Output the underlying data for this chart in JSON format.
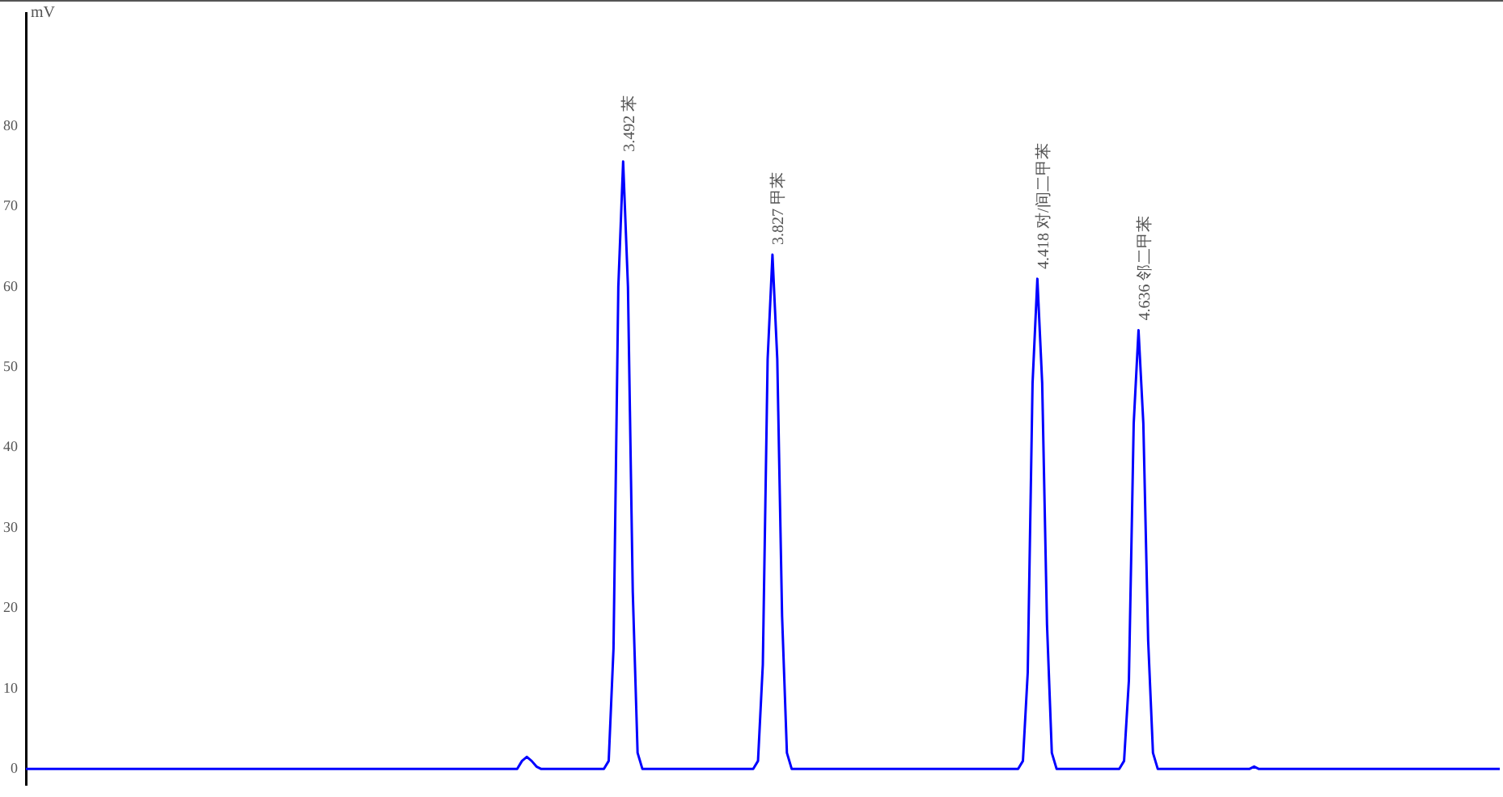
{
  "chart_data": {
    "type": "line",
    "ylabel": "mV",
    "ylim": [
      -2,
      94
    ],
    "yticks": [
      0,
      10,
      20,
      30,
      40,
      50,
      60,
      70,
      80
    ],
    "tick_labels": "y",
    "grid": false,
    "legend": false,
    "marker": "none",
    "line_style": "solid",
    "categories": [
      null,
      null,
      null,
      null,
      null,
      null,
      null,
      null,
      null,
      null,
      null,
      null,
      null,
      null,
      null,
      null,
      null,
      null,
      null,
      null,
      null,
      null,
      null,
      null,
      null,
      null,
      null,
      null,
      null,
      null,
      null,
      null,
      null,
      null,
      null,
      null,
      null,
      null,
      null,
      null,
      null,
      null,
      null,
      null,
      null,
      null,
      null,
      null,
      null,
      null,
      null,
      null,
      null,
      null,
      null,
      null,
      null,
      null,
      null,
      null,
      null,
      null,
      null,
      null,
      null,
      null,
      null,
      null,
      null,
      null,
      null,
      null,
      null,
      null,
      null,
      null,
      null,
      null,
      null,
      null,
      null,
      null,
      null,
      null,
      null,
      null,
      null,
      null,
      null,
      null,
      null,
      null,
      null,
      null,
      null,
      null,
      null,
      null,
      null,
      null,
      null,
      null,
      null,
      null,
      null,
      null,
      null,
      null,
      null,
      null,
      null,
      null,
      null,
      null,
      null,
      null,
      null,
      null,
      null,
      null,
      null,
      null,
      null,
      null,
      null,
      null,
      null,
      null,
      null,
      null,
      null,
      null,
      null,
      null,
      null,
      null,
      null,
      null,
      null,
      null,
      null,
      null,
      null,
      null,
      null,
      null,
      null,
      null,
      null,
      null,
      null,
      null,
      null,
      null,
      null,
      null,
      null,
      null,
      null,
      null,
      null,
      null,
      null,
      null,
      null,
      null,
      null,
      null,
      null,
      null,
      null,
      null,
      null,
      null,
      null,
      null,
      null,
      null,
      null,
      null,
      null,
      null,
      null,
      null,
      null,
      null,
      null,
      null,
      null,
      null,
      null,
      null,
      null,
      null,
      null,
      null,
      null,
      null,
      null,
      null,
      null,
      null,
      null,
      null,
      null,
      null,
      null,
      null,
      null,
      null,
      null,
      null,
      null,
      null,
      null,
      null,
      null,
      null,
      null,
      null,
      null,
      null,
      null,
      null,
      null,
      null,
      null,
      null,
      null,
      null,
      null,
      null,
      null,
      null,
      null,
      null,
      null,
      null,
      null,
      null,
      null,
      null,
      null,
      null,
      null,
      null,
      null,
      null,
      null,
      null,
      null,
      null,
      null,
      null,
      null,
      null,
      null,
      null,
      null,
      null,
      null,
      null,
      null,
      null,
      null,
      null,
      null,
      null,
      null,
      null,
      null,
      null,
      null,
      null,
      null,
      null,
      null,
      null,
      null,
      null,
      null,
      null,
      null,
      null,
      null,
      null,
      null,
      null,
      null,
      null,
      null,
      null,
      null,
      null,
      null,
      null,
      null,
      null,
      null,
      null,
      null,
      null,
      null,
      null,
      null,
      null,
      null
    ],
    "series": [
      {
        "color": "#0000ff",
        "values": [
          0,
          0,
          0,
          0,
          0,
          0,
          0,
          0,
          0,
          0,
          0,
          0,
          0,
          0,
          0,
          0,
          0,
          0,
          0,
          0,
          0,
          0,
          0,
          0,
          0,
          0,
          0,
          0,
          0,
          0,
          0,
          0,
          0,
          0,
          0,
          0,
          0,
          0,
          0,
          0,
          0,
          0,
          0,
          0,
          0,
          0,
          0,
          0,
          0,
          0,
          0,
          0,
          0,
          0,
          0,
          0,
          0,
          0,
          0,
          0,
          0,
          0,
          0,
          0,
          0,
          0,
          0,
          0,
          0,
          0,
          0,
          0,
          0,
          0,
          0,
          0,
          0,
          0,
          0,
          0,
          0,
          0,
          0,
          0,
          0,
          0,
          0,
          0,
          0,
          0,
          0,
          0,
          0,
          0,
          0,
          0,
          0,
          0,
          0,
          0,
          0,
          0,
          0,
          1,
          1.5,
          1,
          0.3,
          0,
          0,
          0,
          0,
          0,
          0,
          0,
          0,
          0,
          0,
          0,
          0,
          0,
          0,
          1,
          15,
          60,
          75.6,
          60,
          22,
          2,
          0,
          0,
          0,
          0,
          0,
          0,
          0,
          0,
          0,
          0,
          0,
          0,
          0,
          0,
          0,
          0,
          0,
          0,
          0,
          0,
          0,
          0,
          0,
          0,
          1,
          13,
          51,
          64,
          51,
          19,
          2,
          0,
          0,
          0,
          0,
          0,
          0,
          0,
          0,
          0,
          0,
          0,
          0,
          0,
          0,
          0,
          0,
          0,
          0,
          0,
          0,
          0,
          0,
          0,
          0,
          0,
          0,
          0,
          0,
          0,
          0,
          0,
          0,
          0,
          0,
          0,
          0,
          0,
          0,
          0,
          0,
          0,
          0,
          0,
          0,
          0,
          0,
          0,
          0,
          1,
          12,
          48,
          61,
          48,
          18,
          2,
          0,
          0,
          0,
          0,
          0,
          0,
          0,
          0,
          0,
          0,
          0,
          0,
          0,
          0,
          1,
          11,
          43,
          54.6,
          43,
          16,
          2,
          0,
          0,
          0,
          0,
          0,
          0,
          0,
          0,
          0,
          0,
          0,
          0,
          0,
          0,
          0,
          0,
          0,
          0,
          0,
          0,
          0.3,
          0,
          0,
          0,
          0,
          0,
          0,
          0,
          0,
          0,
          0,
          0,
          0,
          0,
          0,
          0,
          0,
          0,
          0,
          0,
          0,
          0,
          0,
          0,
          0,
          0,
          0,
          0,
          0,
          0,
          0,
          0,
          0,
          0,
          0,
          0,
          0,
          0,
          0,
          0,
          0,
          0,
          0,
          0,
          0,
          0,
          0,
          0,
          0,
          0,
          0,
          0
        ]
      }
    ],
    "annotations": [
      {
        "text": "3.492 苯",
        "y": 75.6
      },
      {
        "text": "3.827 甲苯",
        "y": 64
      },
      {
        "text": "4.418 对/间二甲苯",
        "y": 61
      },
      {
        "text": "4.636 邻二甲苯",
        "y": 54.6
      }
    ]
  }
}
